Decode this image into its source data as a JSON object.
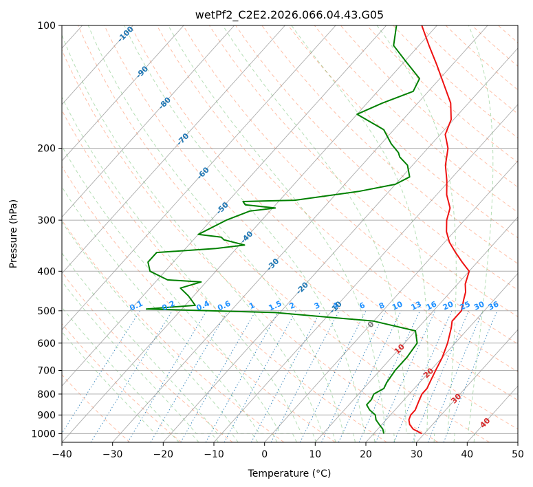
{
  "chart_data": {
    "type": "line",
    "title": "wetPf2_C2E2.2026.066.04.43.G05",
    "xlabel": "Temperature (°C)",
    "ylabel": "Pressure (hPa)",
    "xlim": [
      -40,
      50
    ],
    "ylim": [
      1050,
      100
    ],
    "y_scale": "log",
    "skew": true,
    "grid": true,
    "x_ticks": [
      -40,
      -30,
      -20,
      -10,
      0,
      10,
      20,
      30,
      40,
      50
    ],
    "y_ticks": [
      100,
      200,
      300,
      400,
      500,
      600,
      700,
      800,
      900,
      1000
    ],
    "series": [
      {
        "color": "#ee1111",
        "points": [
          [
            29.5,
            1000
          ],
          [
            27.0,
            975
          ],
          [
            25.5,
            950
          ],
          [
            24.5,
            925
          ],
          [
            24.0,
            900
          ],
          [
            24.0,
            875
          ],
          [
            23.5,
            850
          ],
          [
            23.0,
            825
          ],
          [
            22.5,
            800
          ],
          [
            22.5,
            775
          ],
          [
            22.0,
            750
          ],
          [
            21.0,
            700
          ],
          [
            20.0,
            650
          ],
          [
            18.5,
            600
          ],
          [
            16.5,
            550
          ],
          [
            15.5,
            530
          ],
          [
            15.5,
            500
          ],
          [
            14.0,
            470
          ],
          [
            13.0,
            450
          ],
          [
            11.5,
            430
          ],
          [
            10.0,
            400
          ],
          [
            7.0,
            380
          ],
          [
            4.0,
            360
          ],
          [
            1.0,
            340
          ],
          [
            -1.5,
            320
          ],
          [
            -3.5,
            300
          ],
          [
            -5.0,
            280
          ],
          [
            -8.0,
            260
          ],
          [
            -10.5,
            240
          ],
          [
            -13.5,
            220
          ],
          [
            -16.0,
            200
          ],
          [
            -19.0,
            185
          ],
          [
            -20.5,
            170
          ],
          [
            -23.5,
            155
          ],
          [
            -28.0,
            140
          ],
          [
            -33.0,
            125
          ],
          [
            -38.0,
            112
          ],
          [
            -43.0,
            100
          ]
        ]
      },
      {
        "color": "#008000",
        "points": [
          [
            22.0,
            1000
          ],
          [
            21.0,
            975
          ],
          [
            19.5,
            950
          ],
          [
            18.0,
            925
          ],
          [
            17.0,
            900
          ],
          [
            15.0,
            875
          ],
          [
            13.5,
            850
          ],
          [
            13.5,
            825
          ],
          [
            13.0,
            800
          ],
          [
            14.0,
            775
          ],
          [
            13.5,
            750
          ],
          [
            13.0,
            700
          ],
          [
            13.0,
            650
          ],
          [
            12.5,
            600
          ],
          [
            10.0,
            560
          ],
          [
            0.0,
            530
          ],
          [
            -21.0,
            505
          ],
          [
            -47.0,
            495
          ],
          [
            -38.0,
            485
          ],
          [
            -41.0,
            460
          ],
          [
            -44.0,
            440
          ],
          [
            -41.0,
            425
          ],
          [
            -48.0,
            420
          ],
          [
            -53.0,
            400
          ],
          [
            -55.0,
            380
          ],
          [
            -55.0,
            360
          ],
          [
            -44.0,
            352
          ],
          [
            -39.0,
            345
          ],
          [
            -44.0,
            335
          ],
          [
            -45.0,
            330
          ],
          [
            -50.0,
            325
          ],
          [
            -47.0,
            300
          ],
          [
            -44.0,
            285
          ],
          [
            -39.5,
            280
          ],
          [
            -46.0,
            275
          ],
          [
            -47.0,
            270
          ],
          [
            -37.0,
            268
          ],
          [
            -26.0,
            255
          ],
          [
            -20.0,
            245
          ],
          [
            -18.5,
            235
          ],
          [
            -21.0,
            220
          ],
          [
            -24.0,
            210
          ],
          [
            -25.0,
            205
          ],
          [
            -28.0,
            195
          ],
          [
            -32.0,
            180
          ],
          [
            -40.0,
            165
          ],
          [
            -37.0,
            155
          ],
          [
            -33.0,
            145
          ],
          [
            -34.0,
            135
          ],
          [
            -40.0,
            122
          ],
          [
            -45.0,
            112
          ],
          [
            -48.0,
            100
          ]
        ]
      }
    ],
    "dry_adiabat_labels": [
      "-100",
      "-90",
      "-80",
      "-70",
      "-60",
      "-50",
      "-40",
      "-30",
      "-20",
      "-10",
      "0",
      "10",
      "20",
      "30",
      "40"
    ],
    "mixing_ratio_labels": [
      "0.1",
      "0.2",
      "0.4",
      "0.6",
      "1",
      "1.5",
      "2",
      "3",
      "4",
      "6",
      "8",
      "10",
      "13",
      "16",
      "20",
      "25",
      "30",
      "36"
    ]
  }
}
